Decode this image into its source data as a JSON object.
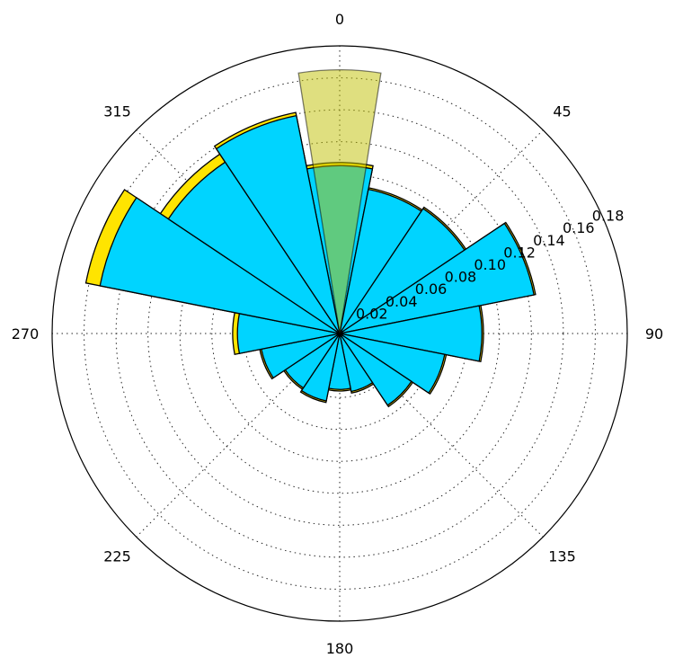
{
  "chart_data": {
    "type": "polar-bar",
    "title": "",
    "angular_ticks": [
      "0",
      "45",
      "90",
      "135",
      "180",
      "225",
      "270",
      "315"
    ],
    "radial_ticks": [
      "0.02",
      "0.04",
      "0.06",
      "0.08",
      "0.10",
      "0.12",
      "0.14",
      "0.16",
      "0.18"
    ],
    "rmax": 0.18,
    "theta_zero": "N",
    "direction": "clockwise",
    "grid": true,
    "bar_width_deg": 22.5,
    "directions": [
      0,
      22.5,
      45,
      67.5,
      90,
      112.5,
      135,
      157.5,
      180,
      202.5,
      225,
      247.5,
      270,
      292.5,
      315,
      337.5
    ],
    "series": [
      {
        "color": "#FFE400",
        "values": [
          0.107,
          0.093,
          0.095,
          0.125,
          0.09,
          0.068,
          0.055,
          0.038,
          0.036,
          0.044,
          0.042,
          0.051,
          0.067,
          0.162,
          0.135,
          0.141
        ]
      },
      {
        "color": "#00D4FF",
        "values": [
          0.105,
          0.092,
          0.094,
          0.124,
          0.089,
          0.067,
          0.054,
          0.037,
          0.035,
          0.043,
          0.041,
          0.05,
          0.064,
          0.153,
          0.129,
          0.139
        ]
      },
      {
        "color": "#BFC000",
        "opacity": 0.5,
        "values": [
          0.165
        ]
      }
    ]
  }
}
